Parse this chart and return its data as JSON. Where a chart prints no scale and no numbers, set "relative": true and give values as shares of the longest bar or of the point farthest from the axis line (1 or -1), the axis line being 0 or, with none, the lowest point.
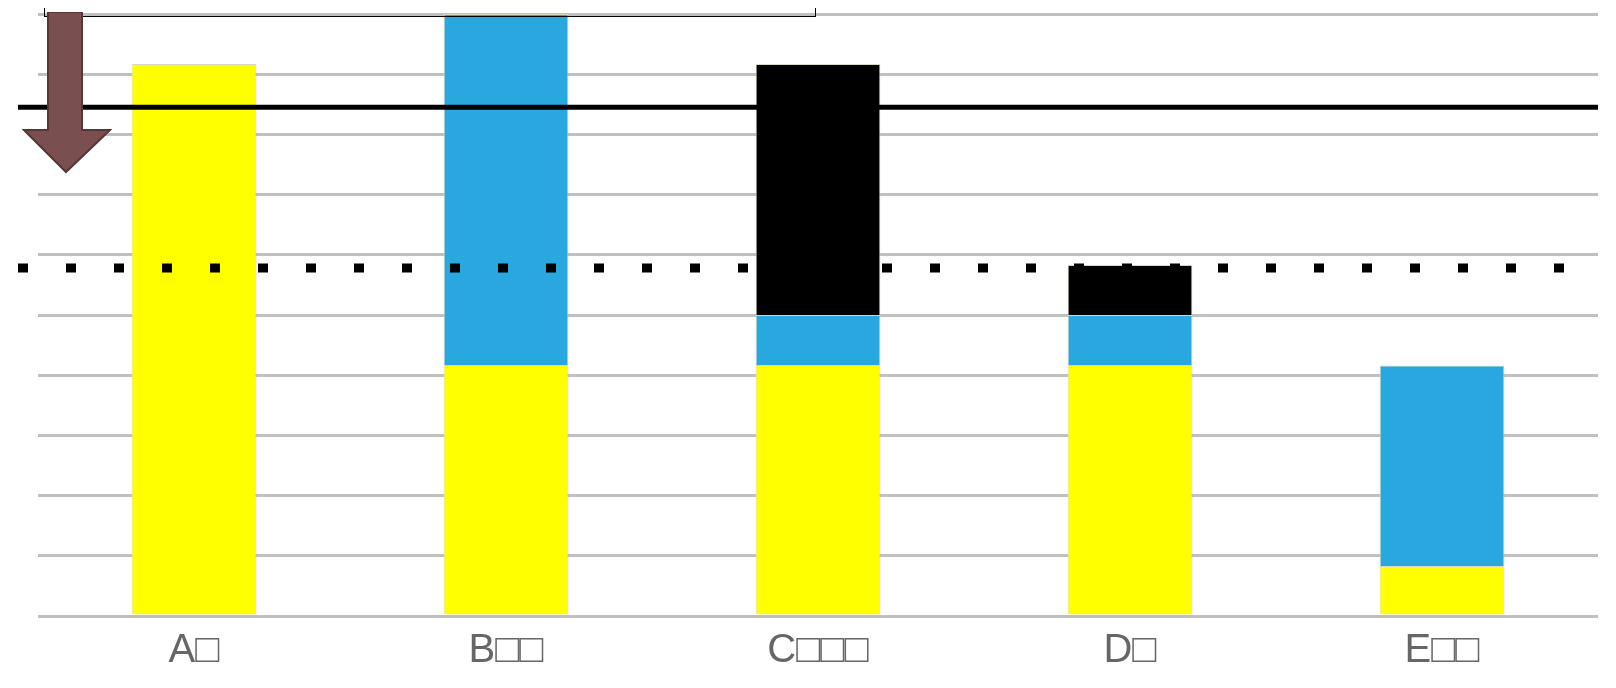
{
  "chart_data": {
    "type": "bar",
    "stacked": true,
    "relative": true,
    "grid": "y",
    "legend": false,
    "categories": [
      "A□",
      "B□□",
      "C□□□",
      "D□",
      "E□□"
    ],
    "series": [
      {
        "color": "#ffff00",
        "values": [
          0.917,
          0.417,
          0.417,
          0.417,
          0.083
        ]
      },
      {
        "color": "#29a8e0",
        "values": [
          null,
          0.583,
          0.083,
          0.083,
          0.333
        ]
      },
      {
        "color": "#000000",
        "values": [
          null,
          null,
          0.417,
          0.083,
          null
        ]
      }
    ],
    "ref_lines": [
      {
        "axis": "y",
        "value": 0.845,
        "color": "#000000",
        "line_style": "solid"
      },
      {
        "axis": "y",
        "value": 0.578,
        "color": "#000000",
        "line_style": "dotted"
      }
    ]
  }
}
